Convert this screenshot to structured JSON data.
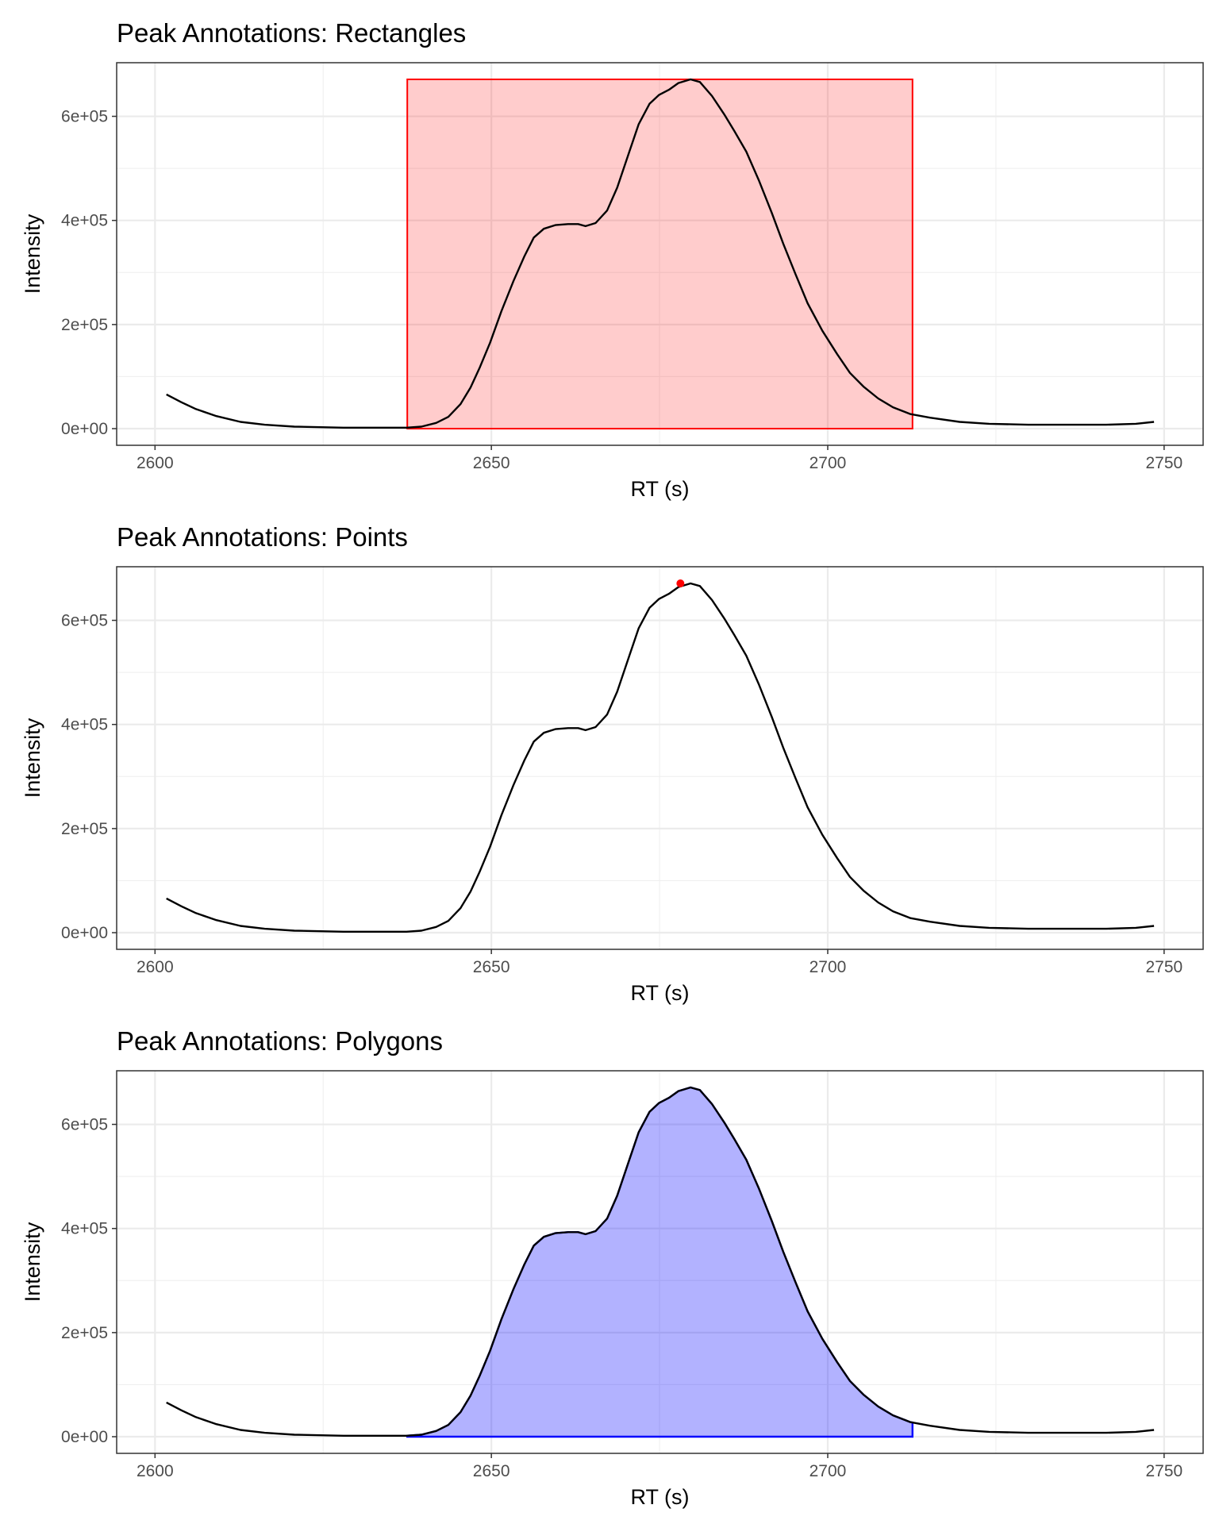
{
  "chart_data": [
    {
      "type": "line",
      "title": "Peak Annotations: Rectangles",
      "xlabel": "RT (s)",
      "ylabel": "Intensity",
      "annotation": {
        "kind": "rectangle",
        "xmin": 2637.5,
        "xmax": 2712.6,
        "ymin": 0,
        "ymax": 671000,
        "fill": "#ff0000",
        "fill_opacity": 0.2,
        "stroke": "#ff0000"
      }
    },
    {
      "type": "line",
      "title": "Peak Annotations: Points",
      "xlabel": "RT (s)",
      "ylabel": "Intensity",
      "annotation": {
        "kind": "point",
        "x": 2678.1,
        "y": 671000,
        "color": "#ff0000"
      }
    },
    {
      "type": "line",
      "title": "Peak Annotations: Polygons",
      "xlabel": "RT (s)",
      "ylabel": "Intensity",
      "annotation": {
        "kind": "polygon",
        "xmin": 2637.5,
        "xmax": 2712.6,
        "fill": "#0000ff",
        "fill_opacity": 0.3,
        "stroke": "#0000ff"
      }
    }
  ],
  "shared": {
    "xlim": [
      2594.3,
      2755.8
    ],
    "ylim": [
      -32000,
      703000
    ],
    "x_ticks": [
      2600,
      2650,
      2700,
      2750
    ],
    "x_tick_labels": [
      "2600",
      "2650",
      "2700",
      "2750"
    ],
    "y_ticks": [
      0,
      200000,
      400000,
      600000
    ],
    "y_tick_labels": [
      "0e+00",
      "2e+05",
      "4e+05",
      "6e+05"
    ],
    "x_minor": [
      2625,
      2675,
      2725
    ],
    "y_minor": [
      100000,
      300000,
      500000
    ],
    "grid": true,
    "theme": "bw",
    "line_color": "#000000",
    "x": [
      2601.7,
      2603.9,
      2606.1,
      2609,
      2612.7,
      2616.3,
      2620.7,
      2628,
      2637.4,
      2639.6,
      2641.8,
      2643.6,
      2645.4,
      2646.9,
      2648.3,
      2649.8,
      2651.5,
      2653.3,
      2654.9,
      2656.3,
      2657.8,
      2659.5,
      2661.4,
      2662.9,
      2664,
      2665.5,
      2667.2,
      2668.7,
      2670.4,
      2671.9,
      2673.5,
      2674.9,
      2676.4,
      2677.8,
      2679.6,
      2681,
      2682.8,
      2684.7,
      2686.1,
      2687.9,
      2689.8,
      2691.7,
      2693.4,
      2695.2,
      2697,
      2699.2,
      2701.4,
      2703.3,
      2705.3,
      2707.5,
      2709.7,
      2712.3,
      2715.2,
      2719.6,
      2724,
      2729.8,
      2734.1,
      2741.4,
      2745.8,
      2748.5
    ],
    "y": [
      65800,
      50800,
      37600,
      24500,
      13000,
      7500,
      3800,
      1900,
      1900,
      3800,
      11000,
      22600,
      47000,
      79000,
      118000,
      165000,
      226000,
      284000,
      331000,
      367000,
      384000,
      391000,
      393000,
      393000,
      389000,
      395000,
      419000,
      463000,
      528000,
      585000,
      624000,
      641000,
      651000,
      664000,
      671000,
      666000,
      639000,
      602000,
      572000,
      532000,
      476000,
      414000,
      355000,
      297000,
      241000,
      188000,
      143000,
      107000,
      81000,
      58000,
      41000,
      28000,
      21000,
      13000,
      9400,
      7500,
      7500,
      7500,
      9400,
      13000
    ]
  }
}
